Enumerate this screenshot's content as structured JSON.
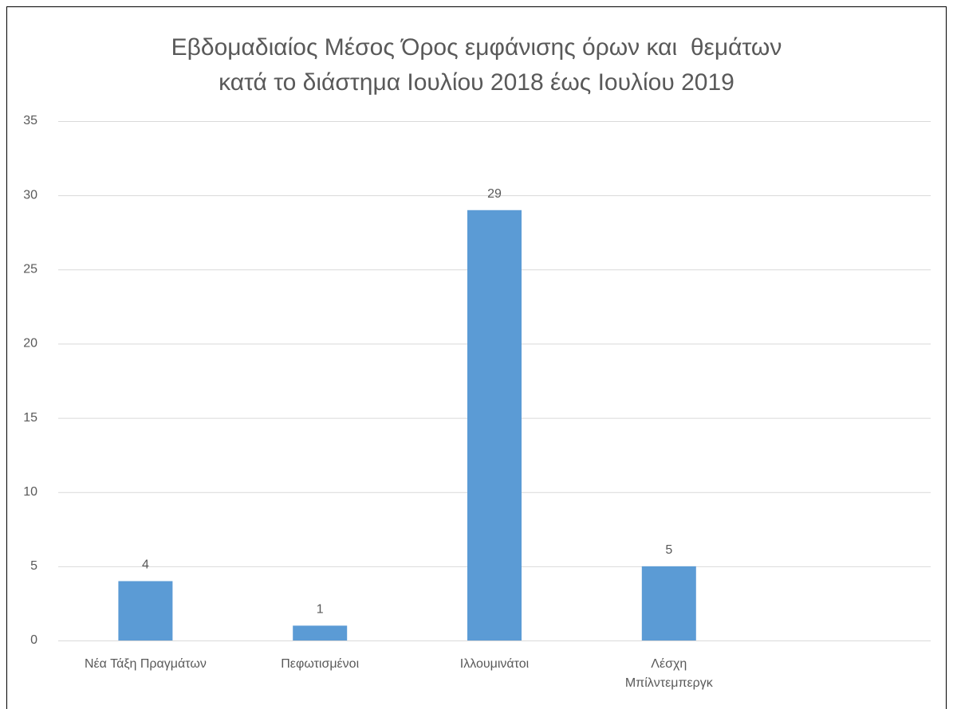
{
  "chart_data": {
    "type": "bar",
    "title": "Εβδομαδιαίος Μέσος Όρος εμφάνισης όρων και  θεμάτων\nκατά το διάστημα Ιουλίου 2018 έως Ιουλίου 2019",
    "categories": [
      "Νέα Τάξη Πραγμάτων",
      "Πεφωτισμένοι",
      "Ιλλουμινάτοι",
      "Λέσχη\nΜπίλντεμπεργκ",
      null
    ],
    "values": [
      4,
      1,
      29,
      5,
      null
    ],
    "color": "#5b9bd5",
    "ylim": [
      0,
      35
    ],
    "yticks": [
      0,
      5,
      10,
      15,
      20,
      25,
      30,
      35
    ],
    "grid": true,
    "data_labels": true
  }
}
